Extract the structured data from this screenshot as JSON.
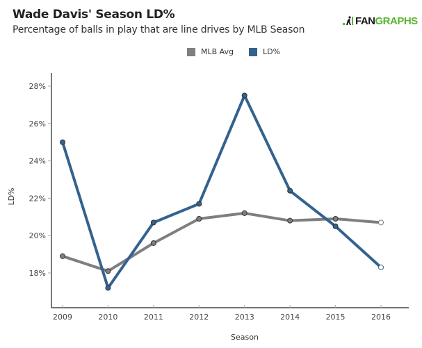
{
  "header": {
    "title": "Wade Davis' Season LD%",
    "subtitle": "Percentage of balls in play that are line drives by MLB Season",
    "logo": {
      "icon": "fangraphs-player-icon",
      "text_part1": "FAN",
      "text_part2": "GRAPHS",
      "colors": {
        "dark": "#1a1a1a",
        "green": "#5ab52f"
      }
    }
  },
  "chart_data": {
    "type": "line",
    "title": "Wade Davis' Season LD%",
    "subtitle": "Percentage of balls in play that are line drives by MLB Season",
    "xlabel": "Season",
    "ylabel": "LD%",
    "x": [
      2009,
      2010,
      2011,
      2012,
      2013,
      2014,
      2015,
      2016
    ],
    "x_tick_labels": [
      "2009",
      "2010",
      "2011",
      "2012",
      "2013",
      "2014",
      "2015",
      "2016"
    ],
    "y_ticks": [
      18,
      20,
      22,
      24,
      26,
      28
    ],
    "y_tick_labels": [
      "18%",
      "20%",
      "22%",
      "24%",
      "26%",
      "28%"
    ],
    "ylim": [
      16.2,
      28.7
    ],
    "grid": false,
    "legend_position": "top-center",
    "series": [
      {
        "name": "MLB Avg",
        "color": "#7f7f7f",
        "values": [
          18.9,
          18.1,
          19.6,
          20.9,
          21.2,
          20.8,
          20.9,
          20.7
        ],
        "last_point_hollow": true
      },
      {
        "name": "LD%",
        "color": "#34628f",
        "values": [
          25.0,
          17.2,
          20.7,
          21.7,
          27.5,
          22.4,
          20.5,
          18.3
        ],
        "last_point_hollow": true
      }
    ]
  }
}
